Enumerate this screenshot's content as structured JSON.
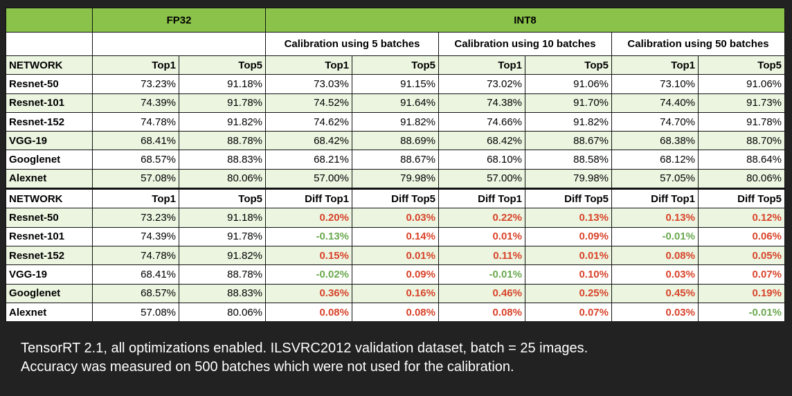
{
  "header": {
    "fp32": "FP32",
    "int8": "INT8",
    "calibrations": [
      "Calibration using 5 batches",
      "Calibration using 10 batches",
      "Calibration using 50 batches"
    ]
  },
  "accuracy_table": {
    "columns": [
      "NETWORK",
      "Top1",
      "Top5",
      "Top1",
      "Top5",
      "Top1",
      "Top5",
      "Top1",
      "Top5"
    ],
    "rows": [
      [
        "Resnet-50",
        "73.23%",
        "91.18%",
        "73.03%",
        "91.15%",
        "73.02%",
        "91.06%",
        "73.10%",
        "91.06%"
      ],
      [
        "Resnet-101",
        "74.39%",
        "91.78%",
        "74.52%",
        "91.64%",
        "74.38%",
        "91.70%",
        "74.40%",
        "91.73%"
      ],
      [
        "Resnet-152",
        "74.78%",
        "91.82%",
        "74.62%",
        "91.82%",
        "74.66%",
        "91.82%",
        "74.70%",
        "91.78%"
      ],
      [
        "VGG-19",
        "68.41%",
        "88.78%",
        "68.42%",
        "88.69%",
        "68.42%",
        "88.67%",
        "68.38%",
        "88.70%"
      ],
      [
        "Googlenet",
        "68.57%",
        "88.83%",
        "68.21%",
        "88.67%",
        "68.10%",
        "88.58%",
        "68.12%",
        "88.64%"
      ],
      [
        "Alexnet",
        "57.08%",
        "80.06%",
        "57.00%",
        "79.98%",
        "57.00%",
        "79.98%",
        "57.05%",
        "80.06%"
      ]
    ]
  },
  "diff_table": {
    "columns": [
      "NETWORK",
      "Top1",
      "Top5",
      "Diff Top1",
      "Diff Top5",
      "Diff Top1",
      "Diff Top5",
      "Diff Top1",
      "Diff Top5"
    ],
    "rows": [
      [
        "Resnet-50",
        "73.23%",
        "91.18%",
        "0.20%",
        "0.03%",
        "0.22%",
        "0.13%",
        "0.13%",
        "0.12%"
      ],
      [
        "Resnet-101",
        "74.39%",
        "91.78%",
        "-0.13%",
        "0.14%",
        "0.01%",
        "0.09%",
        "-0.01%",
        "0.06%"
      ],
      [
        "Resnet-152",
        "74.78%",
        "91.82%",
        "0.15%",
        "0.01%",
        "0.11%",
        "0.01%",
        "0.08%",
        "0.05%"
      ],
      [
        "VGG-19",
        "68.41%",
        "88.78%",
        "-0.02%",
        "0.09%",
        "-0.01%",
        "0.10%",
        "0.03%",
        "0.07%"
      ],
      [
        "Googlenet",
        "68.57%",
        "88.83%",
        "0.36%",
        "0.16%",
        "0.46%",
        "0.25%",
        "0.45%",
        "0.19%"
      ],
      [
        "Alexnet",
        "57.08%",
        "80.06%",
        "0.08%",
        "0.08%",
        "0.08%",
        "0.07%",
        "0.03%",
        "-0.01%"
      ]
    ]
  },
  "colors": {
    "header_green": "#8bc34a",
    "band_green": "#ebf5e0",
    "positive_diff": "#d9432a",
    "negative_diff": "#6aa84f"
  },
  "notes": [
    "TensorRT 2.1, all optimizations enabled. ILSVRC2012 validation dataset, batch = 25 images.",
    "Accuracy was measured on 500 batches which were not used for the calibration."
  ]
}
